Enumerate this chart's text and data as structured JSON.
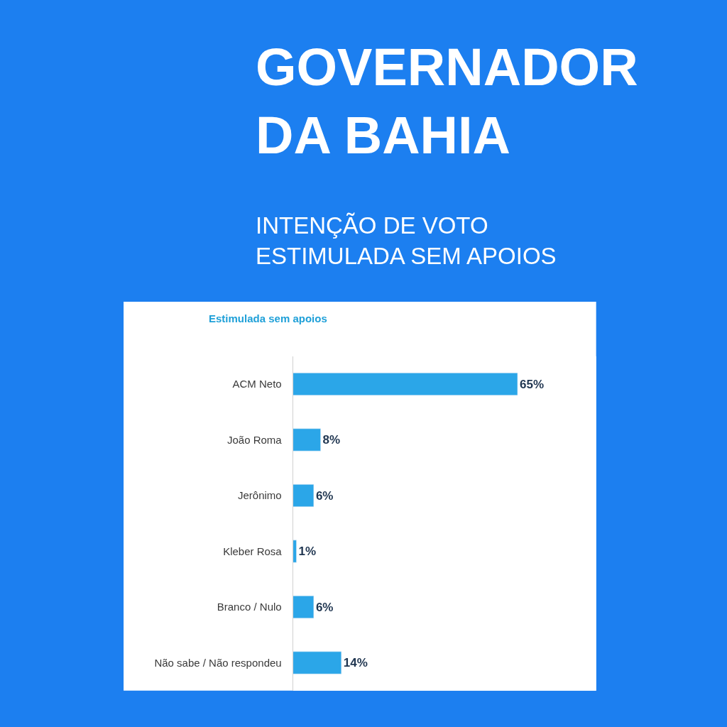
{
  "chart_data": {
    "type": "bar",
    "orientation": "horizontal",
    "title": "GOVERNADOR\nDA BAHIA",
    "subtitle": "INTENÇÃO DE VOTO\nESTIMULADA SEM APOIOS",
    "annotations": [
      "Estimulada sem apoios"
    ],
    "categories": [
      "ACM Neto",
      "João Roma",
      "Jerônimo",
      "Kleber Rosa",
      "Branco / Nulo",
      "Não sabe / Não respondeu"
    ],
    "values": [
      65,
      8,
      6,
      1,
      6,
      14
    ],
    "value_labels": [
      "65%",
      "8%",
      "6%",
      "1%",
      "6%",
      "14%"
    ],
    "color": "#2ba6e8",
    "grid": false,
    "legend": false
  }
}
